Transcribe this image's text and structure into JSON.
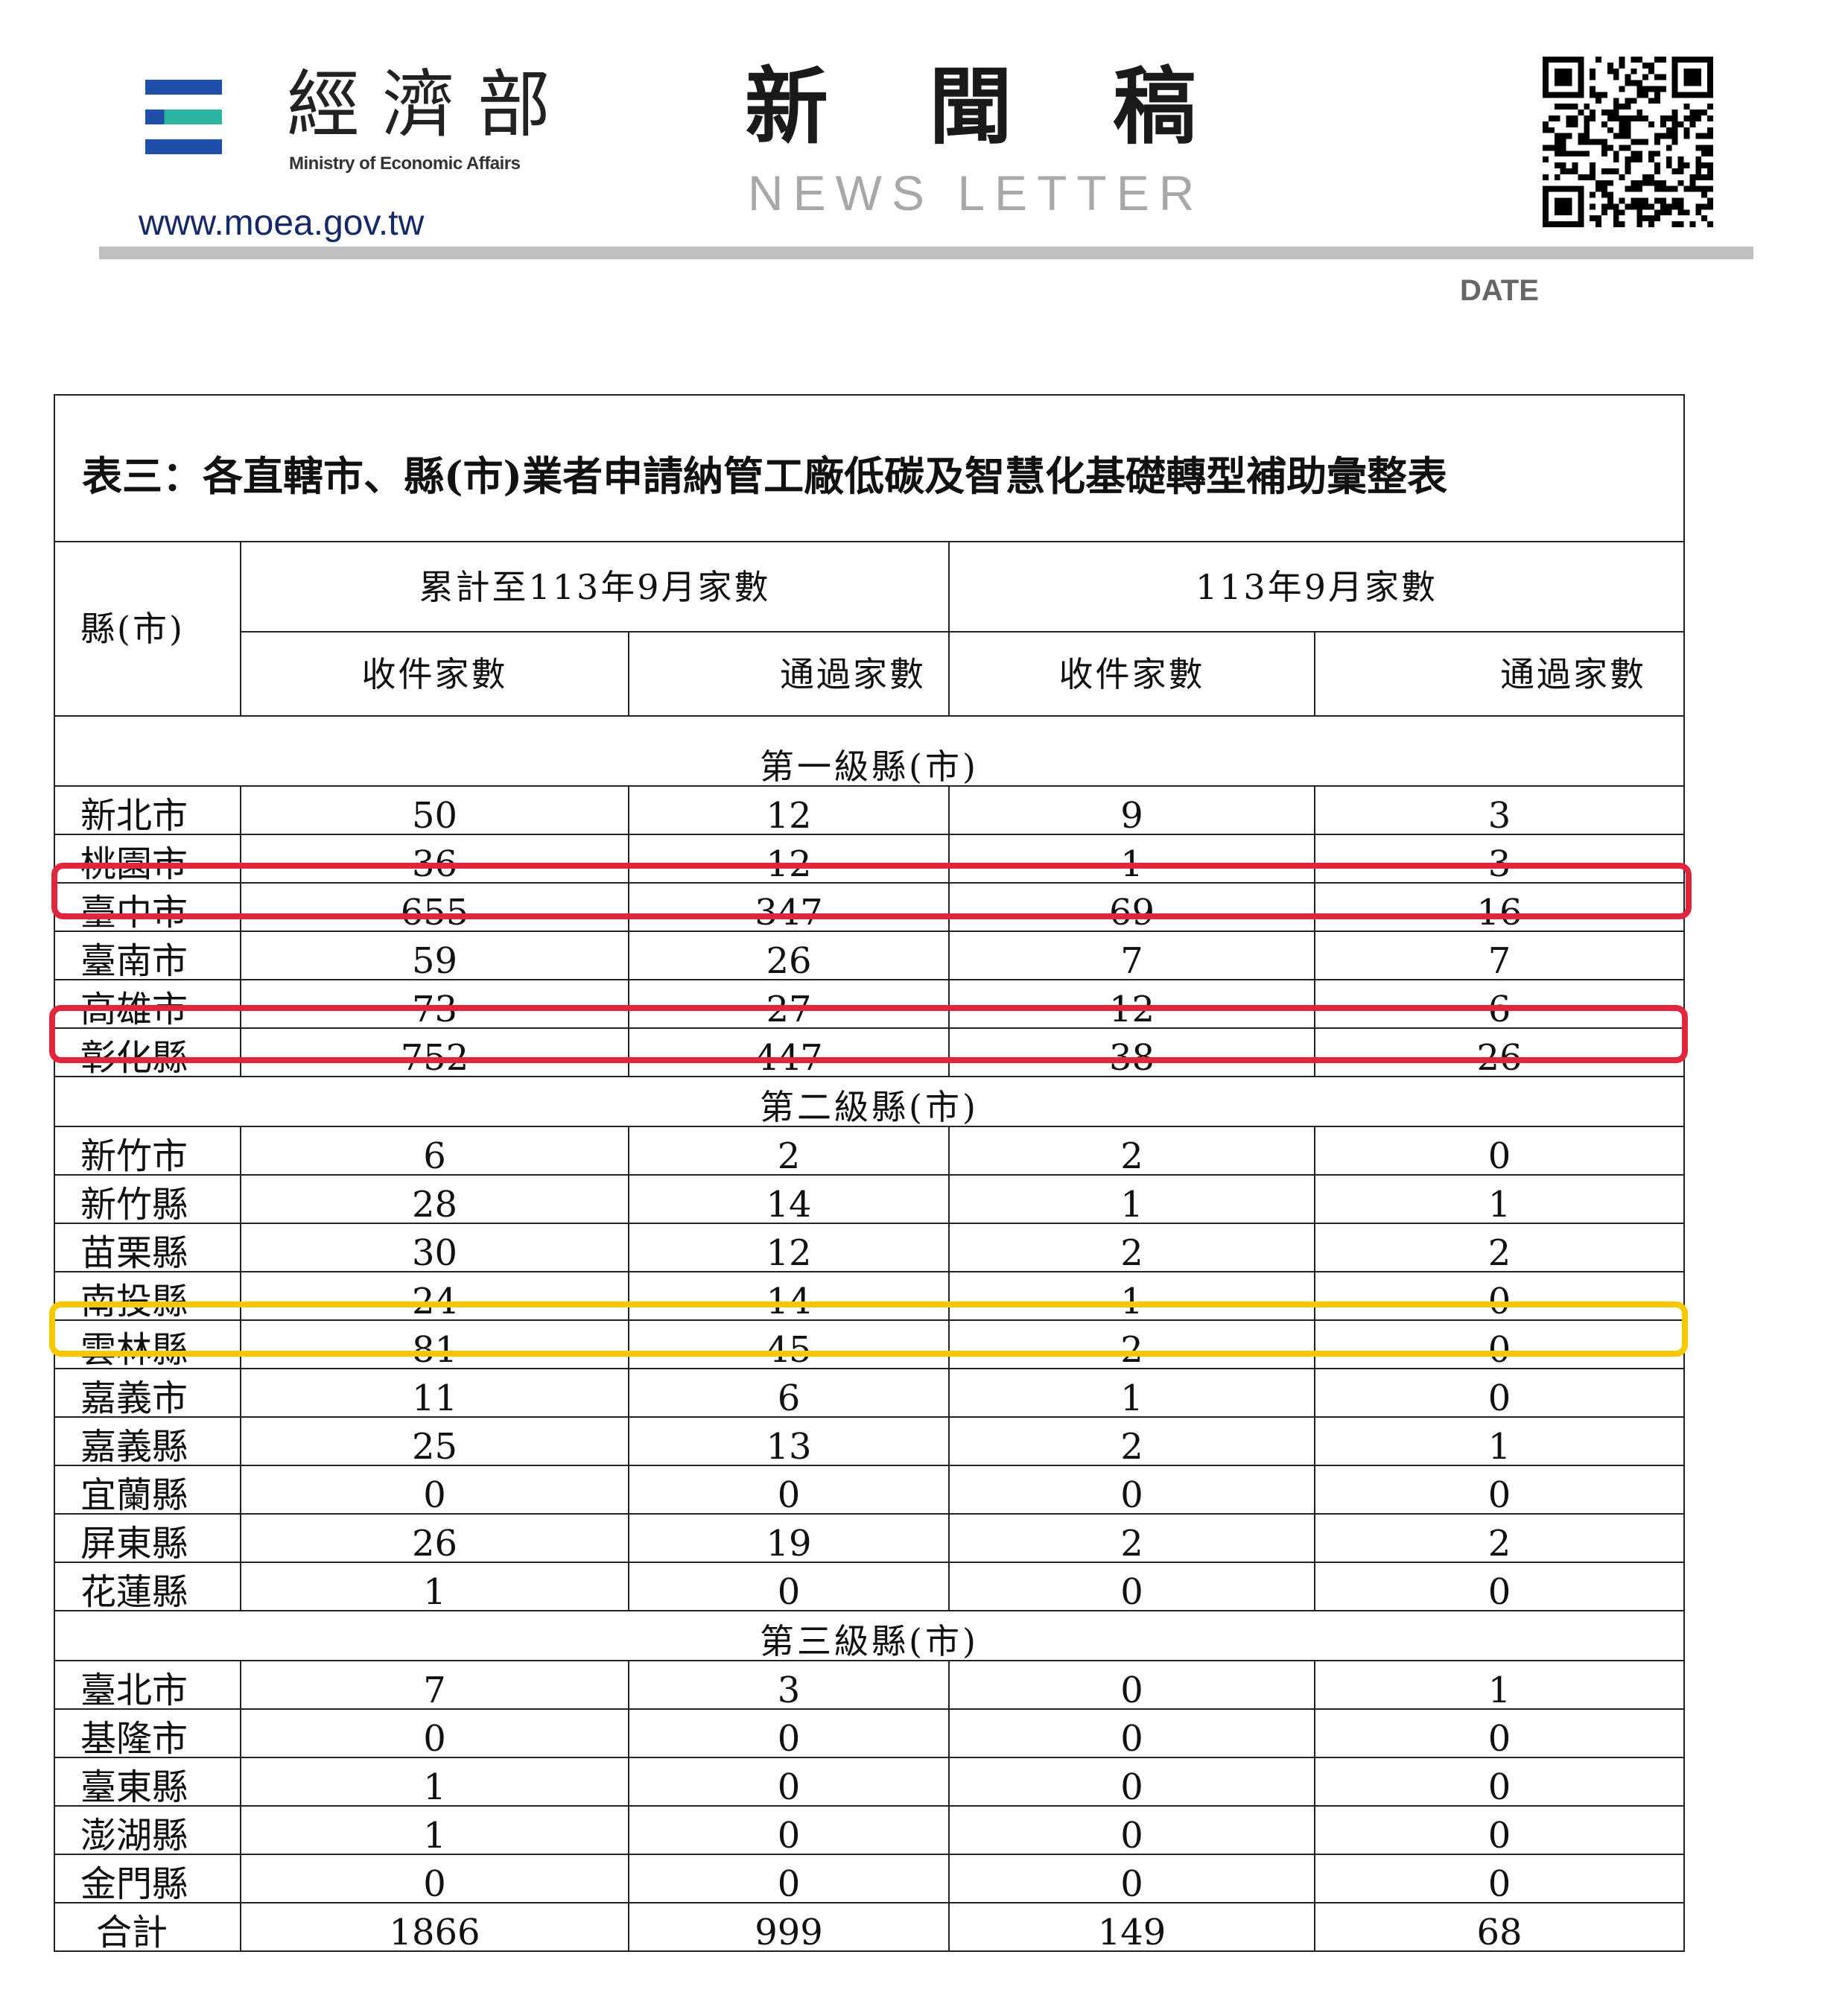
{
  "header": {
    "ministry_name_cn": "經濟部",
    "ministry_name_en": "Ministry of Economic Affairs",
    "website": "www.moea.gov.tw",
    "doc_type_cn": "新聞稿",
    "doc_type_en": "NEWS LETTER",
    "date_label": "DATE",
    "logo_colors": [
      "#1f4fa8",
      "#2bb5a0"
    ],
    "qr_code": "qr-code-icon"
  },
  "table": {
    "title": "表三：各直轄市、縣(市)業者申請納管工廠低碳及智慧化基礎轉型補助彙整表",
    "row_header": "縣(市)",
    "group_headers": [
      "累計至113年9月家數",
      "113年9月家數"
    ],
    "sub_headers": [
      "收件家數",
      "通過家數",
      "收件家數",
      "通過家數"
    ],
    "sections": [
      {
        "label": "第一級縣(市)",
        "rows": [
          {
            "name": "新北市",
            "values": [
              "50",
              "12",
              "9",
              "3"
            ]
          },
          {
            "name": "桃園市",
            "values": [
              "36",
              "12",
              "1",
              "3"
            ]
          },
          {
            "name": "臺中市",
            "values": [
              "655",
              "347",
              "69",
              "16"
            ],
            "highlight": "red"
          },
          {
            "name": "臺南市",
            "values": [
              "59",
              "26",
              "7",
              "7"
            ]
          },
          {
            "name": "高雄市",
            "values": [
              "73",
              "27",
              "12",
              "6"
            ]
          },
          {
            "name": "彰化縣",
            "values": [
              "752",
              "447",
              "38",
              "26"
            ],
            "highlight": "red"
          }
        ]
      },
      {
        "label": "第二級縣(市)",
        "rows": [
          {
            "name": "新竹市",
            "values": [
              "6",
              "2",
              "2",
              "0"
            ]
          },
          {
            "name": "新竹縣",
            "values": [
              "28",
              "14",
              "1",
              "1"
            ]
          },
          {
            "name": "苗栗縣",
            "values": [
              "30",
              "12",
              "2",
              "2"
            ]
          },
          {
            "name": "南投縣",
            "values": [
              "24",
              "14",
              "1",
              "0"
            ]
          },
          {
            "name": "雲林縣",
            "values": [
              "81",
              "45",
              "2",
              "0"
            ],
            "highlight": "yellow"
          },
          {
            "name": "嘉義市",
            "values": [
              "11",
              "6",
              "1",
              "0"
            ]
          },
          {
            "name": "嘉義縣",
            "values": [
              "25",
              "13",
              "2",
              "1"
            ]
          },
          {
            "name": "宜蘭縣",
            "values": [
              "0",
              "0",
              "0",
              "0"
            ]
          },
          {
            "name": "屏東縣",
            "values": [
              "26",
              "19",
              "2",
              "2"
            ]
          },
          {
            "name": "花蓮縣",
            "values": [
              "1",
              "0",
              "0",
              "0"
            ]
          }
        ]
      },
      {
        "label": "第三級縣(市)",
        "rows": [
          {
            "name": "臺北市",
            "values": [
              "7",
              "3",
              "0",
              "1"
            ]
          },
          {
            "name": "基隆市",
            "values": [
              "0",
              "0",
              "0",
              "0"
            ]
          },
          {
            "name": "臺東縣",
            "values": [
              "1",
              "0",
              "0",
              "0"
            ]
          },
          {
            "name": "澎湖縣",
            "values": [
              "1",
              "0",
              "0",
              "0"
            ]
          },
          {
            "name": "金門縣",
            "values": [
              "0",
              "0",
              "0",
              "0"
            ]
          }
        ]
      }
    ],
    "total": {
      "name": "合計",
      "values": [
        "1866",
        "999",
        "149",
        "68"
      ]
    },
    "highlight_colors": {
      "red": "#e0263a",
      "yellow": "#f5c800"
    }
  }
}
